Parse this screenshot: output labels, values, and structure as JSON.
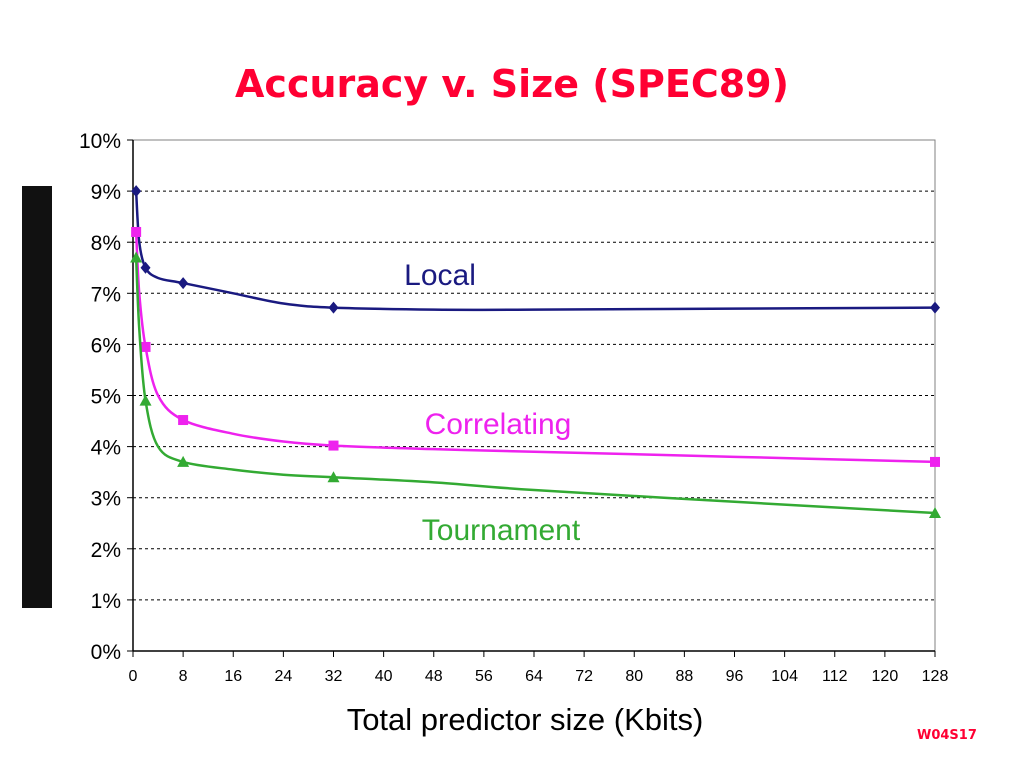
{
  "slide": {
    "title": "Accuracy v. Size (SPEC89)",
    "code": "W04S17"
  },
  "chart_data": {
    "type": "line",
    "title": "",
    "xlabel": "Total predictor size (Kbits)",
    "ylabel": "",
    "xlim": [
      0,
      128
    ],
    "ylim": [
      0,
      10
    ],
    "x_ticks": [
      0,
      8,
      16,
      24,
      32,
      40,
      48,
      56,
      64,
      72,
      80,
      88,
      96,
      104,
      112,
      120,
      128
    ],
    "y_ticks": [
      "0%",
      "1%",
      "2%",
      "3%",
      "4%",
      "5%",
      "6%",
      "7%",
      "8%",
      "9%",
      "10%"
    ],
    "grid": "horizontal dashed",
    "series": [
      {
        "name": "Local",
        "color": "#1a1a80",
        "marker": "diamond",
        "points": [
          [
            0.5,
            9.0
          ],
          [
            2,
            7.5
          ],
          [
            8,
            7.2
          ],
          [
            32,
            6.72
          ],
          [
            128,
            6.72
          ]
        ],
        "curve": [
          [
            0.5,
            9.0
          ],
          [
            1,
            8.0
          ],
          [
            2,
            7.5
          ],
          [
            4,
            7.3
          ],
          [
            8,
            7.2
          ],
          [
            16,
            7.0
          ],
          [
            24,
            6.8
          ],
          [
            32,
            6.72
          ],
          [
            48,
            6.68
          ],
          [
            64,
            6.68
          ],
          [
            96,
            6.7
          ],
          [
            128,
            6.72
          ]
        ]
      },
      {
        "name": "Correlating",
        "color": "#ee22ee",
        "marker": "square",
        "points": [
          [
            0.5,
            8.2
          ],
          [
            2,
            5.95
          ],
          [
            8,
            4.52
          ],
          [
            32,
            4.02
          ],
          [
            128,
            3.7
          ]
        ],
        "curve": [
          [
            0.5,
            8.2
          ],
          [
            1,
            7.0
          ],
          [
            2,
            5.95
          ],
          [
            4,
            5.0
          ],
          [
            8,
            4.52
          ],
          [
            16,
            4.25
          ],
          [
            24,
            4.1
          ],
          [
            32,
            4.02
          ],
          [
            48,
            3.95
          ],
          [
            64,
            3.9
          ],
          [
            96,
            3.8
          ],
          [
            128,
            3.7
          ]
        ]
      },
      {
        "name": "Tournament",
        "color": "#33aa33",
        "marker": "triangle",
        "points": [
          [
            0.5,
            7.7
          ],
          [
            2,
            4.9
          ],
          [
            8,
            3.7
          ],
          [
            32,
            3.4
          ],
          [
            128,
            2.7
          ]
        ],
        "curve": [
          [
            0.5,
            7.7
          ],
          [
            1,
            6.3
          ],
          [
            2,
            4.9
          ],
          [
            4,
            4.0
          ],
          [
            8,
            3.7
          ],
          [
            16,
            3.55
          ],
          [
            24,
            3.45
          ],
          [
            32,
            3.4
          ],
          [
            48,
            3.3
          ],
          [
            64,
            3.15
          ],
          [
            96,
            2.92
          ],
          [
            128,
            2.7
          ]
        ]
      }
    ]
  }
}
